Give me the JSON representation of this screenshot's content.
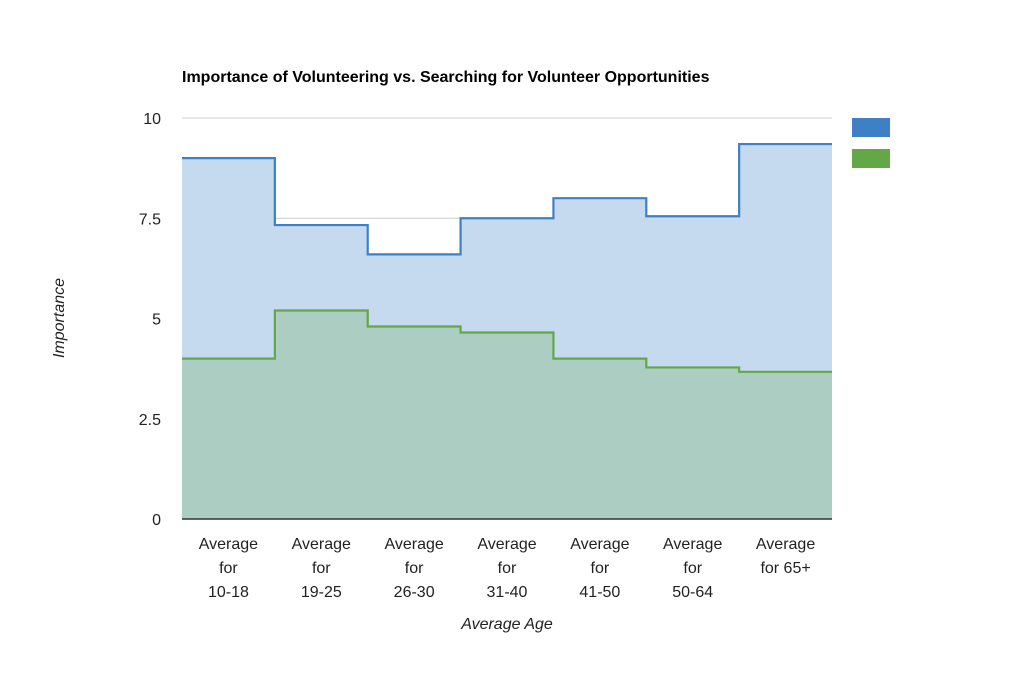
{
  "chart_data": {
    "type": "area",
    "step": true,
    "title": "Importance of Volunteering vs. Searching for Volunteer Opportunities",
    "xlabel": "Average Age",
    "ylabel": "Importance",
    "categories": [
      [
        "Average",
        "for",
        "10-18"
      ],
      [
        "Average",
        "for",
        "19-25"
      ],
      [
        "Average",
        "for",
        "26-30"
      ],
      [
        "Average",
        "for",
        "31-40"
      ],
      [
        "Average",
        "for",
        "41-50"
      ],
      [
        "Average",
        "for",
        "50-64"
      ],
      [
        "Average",
        "for 65+"
      ]
    ],
    "ylim": [
      0,
      10
    ],
    "yticks": [
      "0",
      "2.5",
      "5",
      "7.5",
      "10"
    ],
    "grid": true,
    "legend": "right",
    "series": [
      {
        "values": [
          9.0,
          7.33,
          6.6,
          7.5,
          8.0,
          7.55,
          9.35
        ],
        "color": "#3d80c6",
        "fill": "#c5daef"
      },
      {
        "values": [
          4.0,
          5.2,
          4.8,
          4.65,
          4.0,
          3.78,
          3.67
        ],
        "color": "#62a847",
        "fill": "#a9cbbb"
      }
    ]
  }
}
